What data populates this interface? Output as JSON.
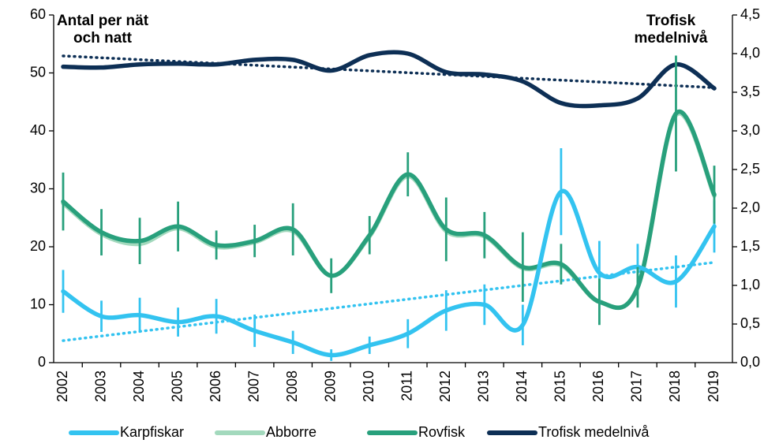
{
  "chart_data": {
    "type": "line",
    "annotations": [
      "Antal per nät och natt",
      "Trofisk medelnivå"
    ],
    "categories": [
      "2002",
      "2003",
      "2004",
      "2005",
      "2006",
      "2007",
      "2008",
      "2009",
      "2010",
      "2011",
      "2012",
      "2013",
      "2014",
      "2015",
      "2016",
      "2017",
      "2018",
      "2019"
    ],
    "ylim": [
      0,
      60
    ],
    "yticks": [
      0,
      10,
      20,
      30,
      40,
      50,
      60
    ],
    "y2lim": [
      0,
      4.5
    ],
    "y2ticks": [
      {
        "value": 0,
        "label": "0,0"
      },
      {
        "value": 0.5,
        "label": "0,5"
      },
      {
        "value": 1,
        "label": "1,0"
      },
      {
        "value": 1.5,
        "label": "1,5"
      },
      {
        "value": 2,
        "label": "2,0"
      },
      {
        "value": 2.5,
        "label": "2,5"
      },
      {
        "value": 3,
        "label": "3,0"
      },
      {
        "value": 3.5,
        "label": "3,5"
      },
      {
        "value": 4,
        "label": "4,0"
      },
      {
        "value": 4.5,
        "label": "4,5"
      }
    ],
    "legend": "bottom",
    "series": [
      {
        "name": "Karpfiskar",
        "color": "#33c3f0",
        "values": [
          12.3,
          8,
          8.2,
          7,
          8,
          5.5,
          3.5,
          1.3,
          3,
          5,
          9,
          10,
          6.5,
          29.5,
          15.5,
          16.5,
          14,
          23.5
        ],
        "errors": [
          3.7,
          2.7,
          3,
          2.5,
          3,
          2.8,
          2,
          1,
          1.5,
          2.5,
          3.5,
          3.5,
          3.5,
          7.5,
          5.5,
          4,
          4.5,
          4.5
        ],
        "trend": [
          3.8,
          17.3
        ]
      },
      {
        "name": "Abborre",
        "color": "#a3d9bd",
        "values": [
          27.5,
          22.2,
          20.5,
          23.2,
          20,
          20.8,
          22.7,
          15,
          21.8,
          32.2,
          22.7,
          21.8,
          16.3,
          16.8,
          10.5,
          13,
          42.7,
          28.8
        ]
      },
      {
        "name": "Rovfisk",
        "color": "#28a07c",
        "values": [
          27.8,
          22.5,
          21,
          23.5,
          20.3,
          21,
          23,
          15,
          22,
          32.5,
          23,
          22,
          16.5,
          17,
          10.5,
          13,
          43,
          29
        ],
        "errors": [
          5,
          4,
          4,
          4.3,
          2.5,
          2.8,
          4.5,
          3,
          3.3,
          3.8,
          5.5,
          4,
          6,
          3.5,
          4,
          3.5,
          10,
          5
        ]
      },
      {
        "name": "Trofisk medelnivå",
        "color": "#0d2f55",
        "axis": "y2",
        "values": [
          3.83,
          3.82,
          3.86,
          3.87,
          3.86,
          3.92,
          3.92,
          3.78,
          3.98,
          4.0,
          3.76,
          3.73,
          3.64,
          3.36,
          3.33,
          3.42,
          3.86,
          3.55
        ],
        "trend": [
          3.97,
          3.56
        ]
      }
    ]
  }
}
